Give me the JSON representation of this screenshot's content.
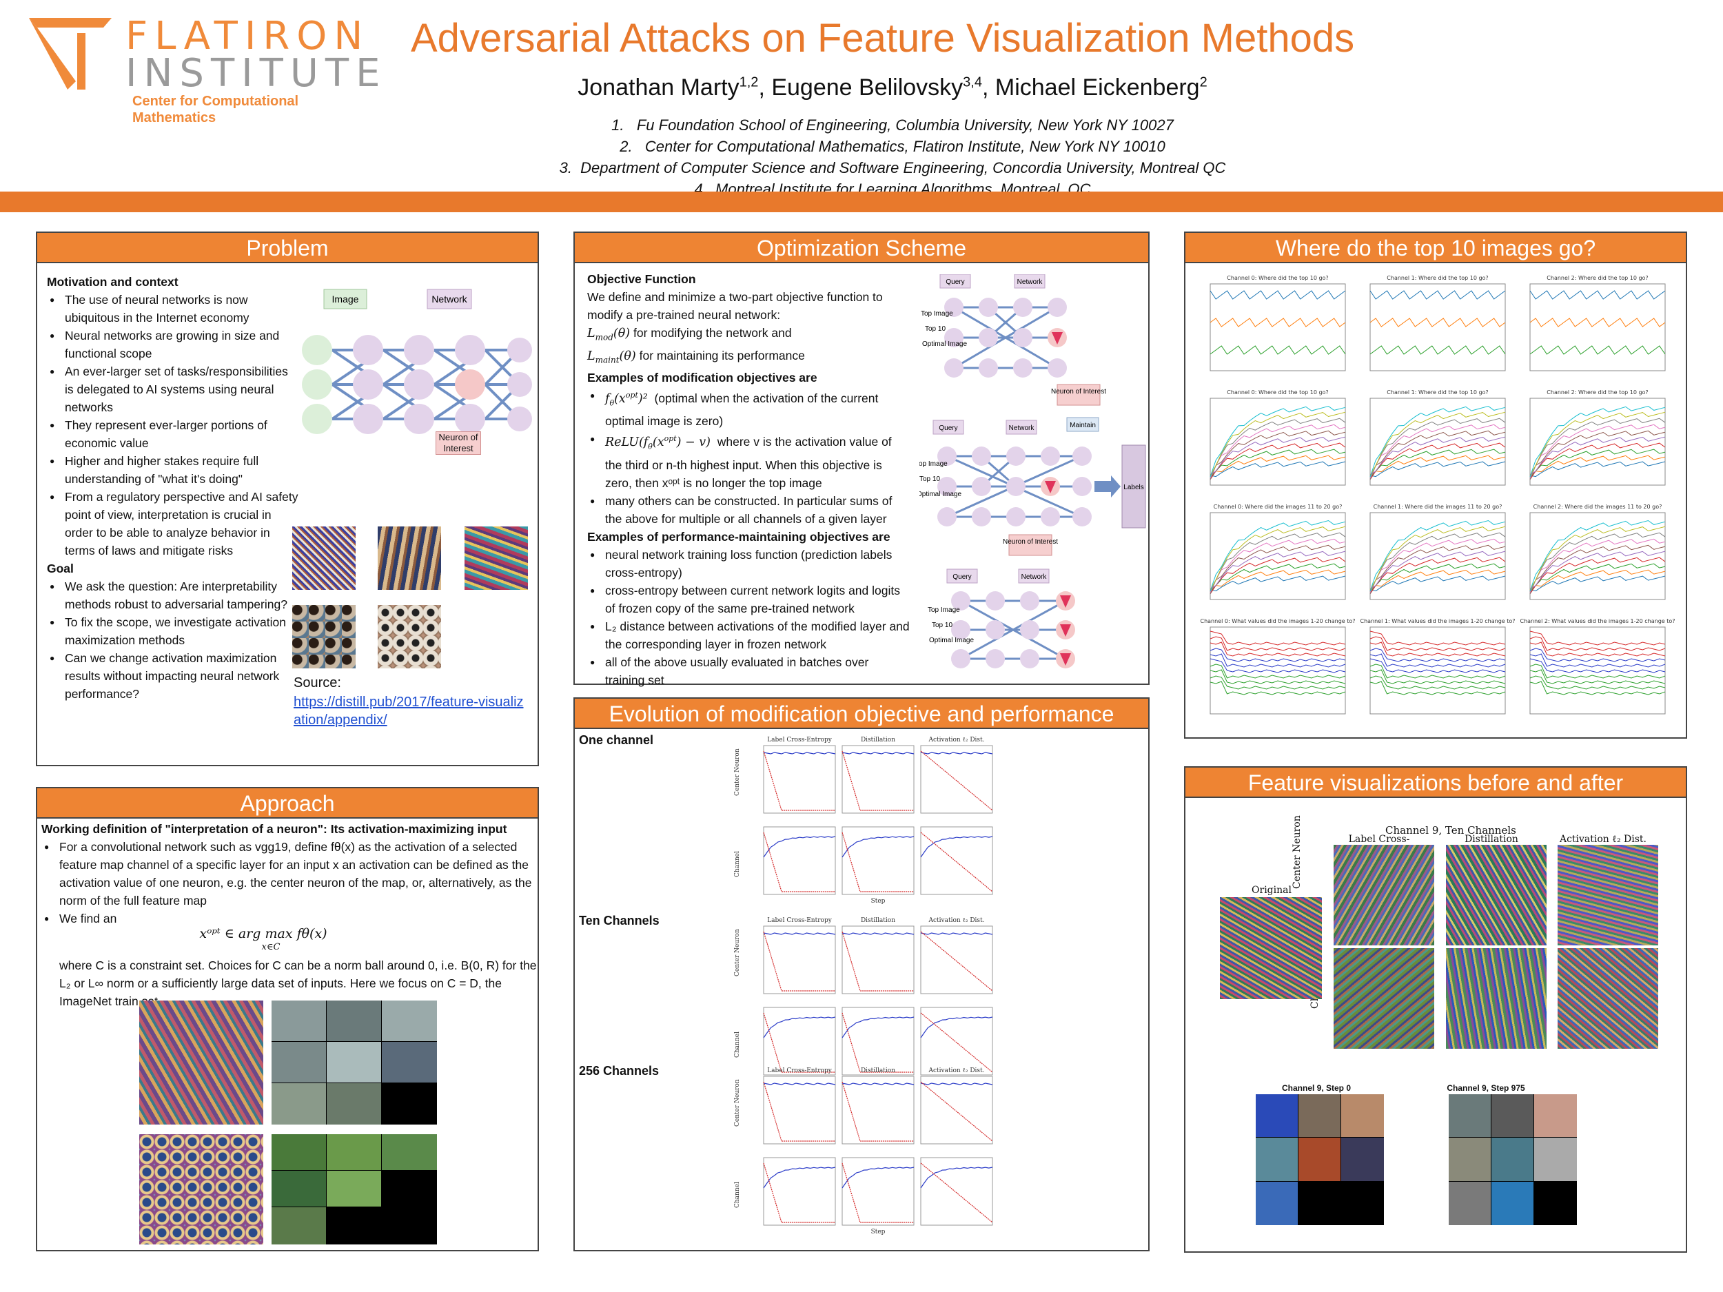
{
  "header": {
    "logo": {
      "word1": "FLATIRON",
      "word2": "INSTITUTE",
      "sub1": "Center for Computational",
      "sub2": "Mathematics"
    },
    "title": "Adversarial Attacks on Feature Visualization Methods",
    "authors": [
      {
        "name": "Jonathan Marty",
        "sup": "1,2"
      },
      {
        "name": "Eugene Belilovsky",
        "sup": "3,4"
      },
      {
        "name": "Michael Eickenberg",
        "sup": "2"
      }
    ],
    "affiliations": [
      "Fu Foundation School of Engineering, Columbia University, New York NY 10027",
      "Center for Computational Mathematics, Flatiron Institute, New York NY 10010",
      "Department of Computer Science and Software Engineering, Concordia University, Montreal QC",
      "Montreal Institute for Learning Algorithms, Montreal, QC"
    ]
  },
  "problem": {
    "heading": "Problem",
    "motivation_title": "Motivation and context",
    "motivation": [
      "The use of neural networks is now ubiquitous in the Internet economy",
      "Neural networks are growing in size and functional scope",
      "An ever-larger set of tasks/responsibilities is delegated to AI systems using neural networks",
      "They represent ever-larger portions of economic value",
      "Higher and higher stakes require full understanding of \"what it's doing\"",
      "From a regulatory perspective and AI safety point of view, interpretation is crucial in order to be able to analyze behavior in terms of laws and mitigate risks"
    ],
    "goal_title": "Goal",
    "goal": [
      "We ask the question: Are interpretability methods robust to adversarial tampering?",
      "To fix the scope, we investigate activation maximization methods",
      "Can we change activation maximization results without impacting neural network performance?"
    ],
    "diagram": {
      "image_label": "Image",
      "network_label": "Network",
      "neuron_label": "Neuron of Interest"
    },
    "source_label": "Source:",
    "source_link": "https://distill.pub/2017/feature-visualization/appendix/"
  },
  "approach": {
    "heading": "Approach",
    "definition": "Working definition of \"interpretation of a neuron\": Its activation-maximizing input",
    "bullet1": "For a convolutional network such as vgg19, define fθ(x) as the activation of a selected feature map channel of a specific layer for an input x an activation can be defined as the activation value of one neuron, e.g. the center neuron of the map, or, alternatively, as the norm of the full feature map",
    "bullet2": "We find an",
    "equation": "xᵒᵖᵗ ∈ arg max fθ(x)",
    "equation_sub": "x∈C",
    "constraint_text": "where C is a constraint set. Choices for C can be a norm ball around 0, i.e. B(0, R) for the L₂ or L∞ norm or a sufficiently large data set of inputs. Here we focus on C = D, the ImageNet train set"
  },
  "optimization": {
    "heading": "Optimization Scheme",
    "objective_title": "Objective Function",
    "objective_text": "We define and minimize a two-part objective function to modify a pre-trained neural network:",
    "lmod": "for modifying the network and",
    "lmaint": "for maintaining its performance",
    "mod_title": "Examples of modification objectives are",
    "mod_items": [
      "(optimal when the activation of the current optimal image is zero)",
      "where v is the activation value of the third or n-th highest input. When this objective is zero, then xᵒᵖᵗ is no longer the top image",
      "many others can be constructed. In particular sums of the above for multiple or all channels of a given layer"
    ],
    "perf_title": "Examples of performance-maintaining objectives are",
    "perf_items": [
      "neural network training loss function (prediction labels cross-entropy)",
      "cross-entropy between current network logits and logits of frozen copy of the same pre-trained network",
      "L₂ distance between activations of the modified layer and the corresponding layer in frozen network",
      "all of the above usually evaluated in batches over training set"
    ],
    "diagram": {
      "query": "Query",
      "network": "Network",
      "top_image": "Top Image",
      "top10": "Top 10",
      "optimal_image": "Optimal Image",
      "neuron": "Neuron of Interest",
      "maintain": "Maintain",
      "labels": "Labels"
    }
  },
  "evolution": {
    "heading": "Evolution of modification objective and performance",
    "groups": [
      "One channel",
      "Ten Channels",
      "256 Channels"
    ],
    "col_titles": [
      "Label Cross-Entropy",
      "Distillation",
      "Activation ℓ₂ Dist."
    ],
    "row_labels": [
      "Center Neuron",
      "Channel"
    ],
    "xlabel": "Step"
  },
  "top10": {
    "heading": "Where do the top 10 images go?",
    "row_titles": [
      [
        "Channel 0: Where did the top 10 go?",
        "Channel 1: Where did the top 10 go?",
        "Channel 2: Where did the top 10 go?"
      ],
      [
        "Channel 0: Where did the top 10 go?",
        "Channel 1: Where did the top 10 go?",
        "Channel 2: Where did the top 10 go?"
      ],
      [
        "Channel 0: Where did the images 11 to 20 go?",
        "Channel 1: Where did the images 11 to 20 go?",
        "Channel 2: Where did the images 11 to 20 go?"
      ],
      [
        "Channel 0: What values did the images 1-20 change to?",
        "Channel 1: What values did the images 1-20 change to?",
        "Channel 2: What values did the images 1-20 change to?"
      ]
    ]
  },
  "featviz": {
    "heading": "Feature visualizations before and after",
    "title": "Channel 9, Ten Channels",
    "original": "Original",
    "cols": [
      "Label Cross-Entropy",
      "Distillation",
      "Activation ℓ₂ Dist."
    ],
    "rows": [
      "Center Neuron",
      "Channel"
    ],
    "grid1": "Channel 9, Step 0",
    "grid2": "Channel 9, Step 975"
  }
}
